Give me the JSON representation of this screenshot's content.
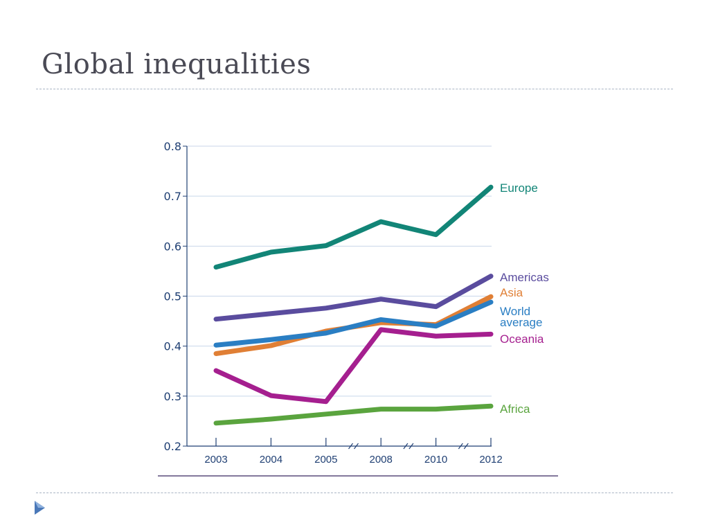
{
  "slide": {
    "title": "Global inequalities"
  },
  "colors": {
    "axis": "#1f3f73",
    "grid": "#c8d6ea",
    "Europe": "#128577",
    "Americas": "#5a4c9e",
    "Asia": "#e07f35",
    "World average": "#2a7ec3",
    "Oceania": "#a51f8f",
    "Africa": "#5aa43e"
  },
  "chart_data": {
    "type": "line",
    "title": "",
    "xlabel": "",
    "ylabel": "",
    "categories": [
      "2003",
      "2004",
      "2005",
      "2008",
      "2010",
      "2012"
    ],
    "ylim": [
      0.2,
      0.8
    ],
    "yticks": [
      "0.2",
      "0.3",
      "0.4",
      "0.5",
      "0.6",
      "0.7",
      "0.8"
    ],
    "grid": "horizontal",
    "legend": "inline labels at line ends",
    "series": [
      {
        "name": "Europe",
        "values": [
          0.558,
          0.588,
          0.601,
          0.649,
          0.623,
          0.718
        ]
      },
      {
        "name": "Americas",
        "values": [
          0.454,
          0.465,
          0.476,
          0.494,
          0.479,
          0.54
        ]
      },
      {
        "name": "Asia",
        "values": [
          0.385,
          0.401,
          0.43,
          0.447,
          0.443,
          0.499
        ]
      },
      {
        "name": "World average",
        "values": [
          0.402,
          0.413,
          0.426,
          0.453,
          0.44,
          0.488
        ]
      },
      {
        "name": "Oceania",
        "values": [
          0.351,
          0.301,
          0.289,
          0.433,
          0.42,
          0.424
        ]
      },
      {
        "name": "Africa",
        "values": [
          0.246,
          0.254,
          0.264,
          0.274,
          0.274,
          0.28
        ]
      }
    ],
    "series_labels": [
      {
        "series": "Europe",
        "text": "Europe"
      },
      {
        "series": "Americas",
        "text": "Americas"
      },
      {
        "series": "Asia",
        "text": "Asia"
      },
      {
        "series": "World average",
        "text": "World"
      },
      {
        "series": "World average",
        "text": "average"
      },
      {
        "series": "Oceania",
        "text": "Oceania"
      },
      {
        "series": "Africa",
        "text": "Africa"
      }
    ]
  }
}
